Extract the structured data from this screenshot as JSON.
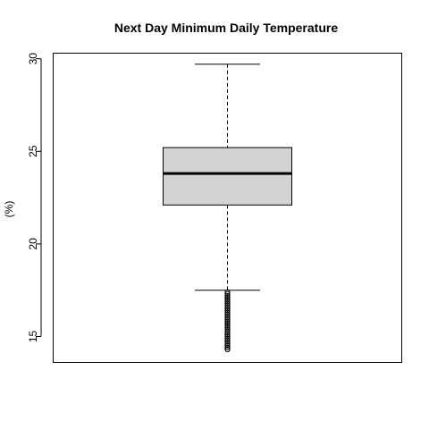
{
  "chart_data": {
    "type": "boxplot",
    "title": "Next Day Minimum Daily Temperature",
    "xlabel": "",
    "ylabel": "(%)",
    "ylim": [
      13.6,
      30.3
    ],
    "yticks": [
      {
        "value": 15,
        "label": "15"
      },
      {
        "value": 20,
        "label": "20"
      },
      {
        "value": 25,
        "label": "25"
      },
      {
        "value": 30,
        "label": "30"
      }
    ],
    "box": {
      "whisker_low": 17.5,
      "q1": 22.1,
      "median": 23.8,
      "q3": 25.2,
      "whisker_high": 29.7
    },
    "outliers": [
      17.4,
      17.3,
      17.2,
      17.1,
      17.0,
      16.9,
      16.8,
      16.7,
      16.6,
      16.5,
      16.4,
      16.3,
      16.2,
      16.1,
      16.0,
      15.9,
      15.8,
      15.7,
      15.6,
      15.5,
      15.4,
      15.3,
      15.2,
      15.1,
      15.0,
      14.9,
      14.8,
      14.7,
      14.6,
      14.5,
      14.4,
      14.3
    ],
    "grid": false,
    "box_color": "#d3d3d3"
  }
}
